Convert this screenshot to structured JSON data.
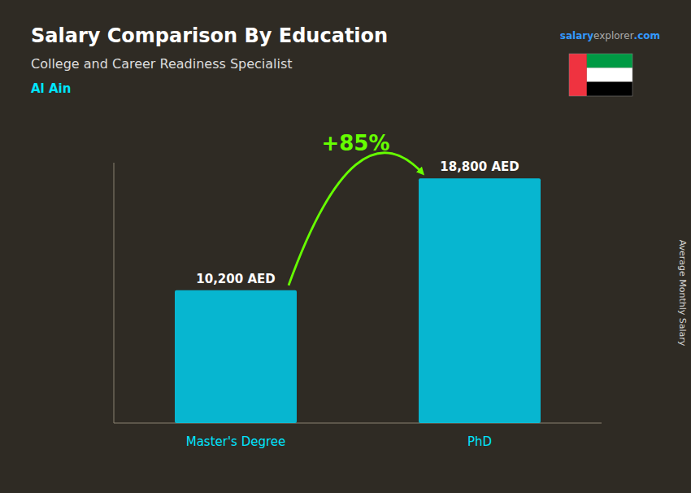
{
  "chart_data": {
    "type": "bar",
    "title": "Salary Comparison By Education",
    "subtitle": "College and Career Readiness Specialist",
    "ylabel": "Average Monthly Salary",
    "annotations": [
      "Al Ain",
      "+85%",
      "salary",
      "explorer",
      ".com"
    ],
    "categories": [
      "Master's Degree",
      "PhD"
    ],
    "values": [
      10200,
      18800
    ],
    "value_labels": [
      "10,200 AED",
      "18,800 AED"
    ],
    "color": "#00cfee",
    "ylim": [
      0,
      20000
    ],
    "grid": false,
    "data_labels": true,
    "tick_labels": "x"
  }
}
